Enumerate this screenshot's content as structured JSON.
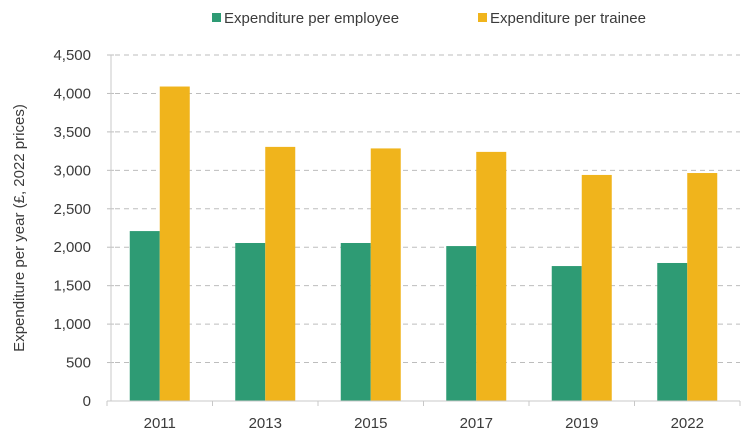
{
  "chart_data": {
    "type": "bar",
    "title": "",
    "xlabel": "",
    "ylabel": "Expenditure per year (£, 2022 prices)",
    "categories": [
      "2011",
      "2013",
      "2015",
      "2017",
      "2019",
      "2022"
    ],
    "series": [
      {
        "name": "Expenditure per employee",
        "color": "#2e9b74",
        "values": [
          2210,
          2055,
          2055,
          2015,
          1755,
          1795
        ]
      },
      {
        "name": "Expenditure per trainee",
        "color": "#f0b41c",
        "values": [
          4090,
          3305,
          3285,
          3240,
          2940,
          2965
        ]
      }
    ],
    "ylim": [
      0,
      4500
    ],
    "yticks": [
      0,
      500,
      1000,
      1500,
      2000,
      2500,
      3000,
      3500,
      4000,
      4500
    ],
    "ytick_labels": [
      "0",
      "500",
      "1,000",
      "1,500",
      "2,000",
      "2,500",
      "3,000",
      "3,500",
      "4,000",
      "4,500"
    ],
    "grid": "horizontal-dashed",
    "legend_position": "top"
  }
}
